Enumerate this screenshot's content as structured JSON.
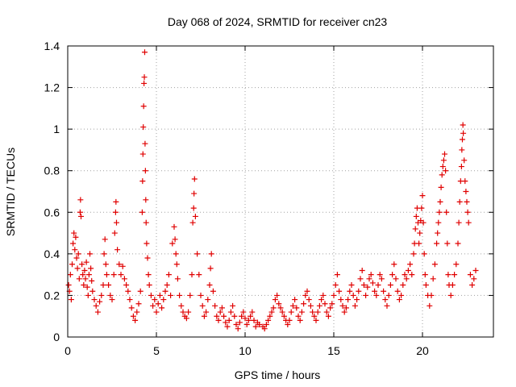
{
  "chart_data": {
    "type": "scatter",
    "title": "Day 068 of 2024, SRMTID for receiver cn23",
    "xlabel": "GPS time / hours",
    "ylabel": "SRMTID / TECUs",
    "xlim": [
      0,
      24
    ],
    "ylim": [
      0,
      1.4
    ],
    "x_ticks": [
      0,
      5,
      10,
      15,
      20
    ],
    "x_tick_labels": [
      "0",
      "5",
      "10",
      "15",
      "20"
    ],
    "y_ticks": [
      0,
      0.2,
      0.4,
      0.6,
      0.8,
      1,
      1.2,
      1.4
    ],
    "y_tick_labels": [
      "0",
      "0.2",
      "0.4",
      "0.6",
      "0.8",
      "1",
      "1.2",
      "1.4"
    ],
    "grid": true,
    "marker": "plus",
    "colors": {
      "series": "#e00000",
      "grid": "#a0a0a0",
      "axis": "#000000"
    },
    "series": [
      {
        "name": "SRMTID",
        "points": [
          [
            0.05,
            0.25
          ],
          [
            0.1,
            0.22
          ],
          [
            0.15,
            0.3
          ],
          [
            0.2,
            0.18
          ],
          [
            0.25,
            0.35
          ],
          [
            0.3,
            0.45
          ],
          [
            0.35,
            0.5
          ],
          [
            0.4,
            0.42
          ],
          [
            0.45,
            0.48
          ],
          [
            0.5,
            0.38
          ],
          [
            0.55,
            0.33
          ],
          [
            0.6,
            0.4
          ],
          [
            0.65,
            0.28
          ],
          [
            0.7,
            0.6
          ],
          [
            0.72,
            0.66
          ],
          [
            0.75,
            0.58
          ],
          [
            0.8,
            0.35
          ],
          [
            0.85,
            0.3
          ],
          [
            0.9,
            0.25
          ],
          [
            0.95,
            0.32
          ],
          [
            1.0,
            0.28
          ],
          [
            1.05,
            0.36
          ],
          [
            1.1,
            0.24
          ],
          [
            1.15,
            0.2
          ],
          [
            1.2,
            0.3
          ],
          [
            1.25,
            0.4
          ],
          [
            1.3,
            0.33
          ],
          [
            1.35,
            0.27
          ],
          [
            1.4,
            0.22
          ],
          [
            1.5,
            0.18
          ],
          [
            1.6,
            0.15
          ],
          [
            1.7,
            0.12
          ],
          [
            1.8,
            0.17
          ],
          [
            1.9,
            0.2
          ],
          [
            2.0,
            0.25
          ],
          [
            2.05,
            0.4
          ],
          [
            2.1,
            0.47
          ],
          [
            2.15,
            0.35
          ],
          [
            2.2,
            0.3
          ],
          [
            2.3,
            0.25
          ],
          [
            2.4,
            0.2
          ],
          [
            2.5,
            0.18
          ],
          [
            2.6,
            0.3
          ],
          [
            2.65,
            0.5
          ],
          [
            2.7,
            0.6
          ],
          [
            2.72,
            0.65
          ],
          [
            2.75,
            0.55
          ],
          [
            2.8,
            0.42
          ],
          [
            2.9,
            0.35
          ],
          [
            3.0,
            0.3
          ],
          [
            3.1,
            0.34
          ],
          [
            3.2,
            0.28
          ],
          [
            3.3,
            0.25
          ],
          [
            3.4,
            0.22
          ],
          [
            3.5,
            0.18
          ],
          [
            3.6,
            0.14
          ],
          [
            3.7,
            0.1
          ],
          [
            3.8,
            0.08
          ],
          [
            3.9,
            0.12
          ],
          [
            4.0,
            0.16
          ],
          [
            4.1,
            0.22
          ],
          [
            4.2,
            0.6
          ],
          [
            4.22,
            0.75
          ],
          [
            4.24,
            0.88
          ],
          [
            4.26,
            1.01
          ],
          [
            4.28,
            1.11
          ],
          [
            4.3,
            1.22
          ],
          [
            4.32,
            1.25
          ],
          [
            4.34,
            1.37
          ],
          [
            4.36,
            0.93
          ],
          [
            4.38,
            0.8
          ],
          [
            4.4,
            0.66
          ],
          [
            4.42,
            0.55
          ],
          [
            4.45,
            0.45
          ],
          [
            4.5,
            0.38
          ],
          [
            4.55,
            0.3
          ],
          [
            4.6,
            0.25
          ],
          [
            4.7,
            0.2
          ],
          [
            4.8,
            0.15
          ],
          [
            4.9,
            0.18
          ],
          [
            5.0,
            0.12
          ],
          [
            5.1,
            0.16
          ],
          [
            5.2,
            0.2
          ],
          [
            5.3,
            0.14
          ],
          [
            5.4,
            0.18
          ],
          [
            5.5,
            0.22
          ],
          [
            5.6,
            0.25
          ],
          [
            5.7,
            0.3
          ],
          [
            5.8,
            0.2
          ],
          [
            5.9,
            0.45
          ],
          [
            6.0,
            0.53
          ],
          [
            6.05,
            0.47
          ],
          [
            6.1,
            0.4
          ],
          [
            6.15,
            0.35
          ],
          [
            6.2,
            0.28
          ],
          [
            6.3,
            0.2
          ],
          [
            6.4,
            0.15
          ],
          [
            6.5,
            0.12
          ],
          [
            6.6,
            0.1
          ],
          [
            6.7,
            0.09
          ],
          [
            6.8,
            0.12
          ],
          [
            6.9,
            0.2
          ],
          [
            7.0,
            0.3
          ],
          [
            7.05,
            0.55
          ],
          [
            7.1,
            0.62
          ],
          [
            7.12,
            0.69
          ],
          [
            7.15,
            0.76
          ],
          [
            7.2,
            0.58
          ],
          [
            7.3,
            0.4
          ],
          [
            7.4,
            0.3
          ],
          [
            7.5,
            0.2
          ],
          [
            7.6,
            0.15
          ],
          [
            7.7,
            0.1
          ],
          [
            7.8,
            0.12
          ],
          [
            7.9,
            0.18
          ],
          [
            8.0,
            0.25
          ],
          [
            8.05,
            0.33
          ],
          [
            8.1,
            0.4
          ],
          [
            8.2,
            0.22
          ],
          [
            8.3,
            0.15
          ],
          [
            8.4,
            0.1
          ],
          [
            8.5,
            0.08
          ],
          [
            8.6,
            0.12
          ],
          [
            8.7,
            0.14
          ],
          [
            8.8,
            0.1
          ],
          [
            8.9,
            0.07
          ],
          [
            9.0,
            0.05
          ],
          [
            9.1,
            0.08
          ],
          [
            9.2,
            0.12
          ],
          [
            9.3,
            0.15
          ],
          [
            9.4,
            0.1
          ],
          [
            9.5,
            0.06
          ],
          [
            9.6,
            0.04
          ],
          [
            9.7,
            0.07
          ],
          [
            9.8,
            0.1
          ],
          [
            9.9,
            0.12
          ],
          [
            10.0,
            0.09
          ],
          [
            10.1,
            0.06
          ],
          [
            10.2,
            0.08
          ],
          [
            10.3,
            0.1
          ],
          [
            10.4,
            0.12
          ],
          [
            10.5,
            0.08
          ],
          [
            10.6,
            0.05
          ],
          [
            10.7,
            0.07
          ],
          [
            10.8,
            0.06
          ],
          [
            11.0,
            0.05
          ],
          [
            11.1,
            0.04
          ],
          [
            11.2,
            0.06
          ],
          [
            11.3,
            0.08
          ],
          [
            11.4,
            0.1
          ],
          [
            11.5,
            0.12
          ],
          [
            11.6,
            0.14
          ],
          [
            11.7,
            0.18
          ],
          [
            11.8,
            0.2
          ],
          [
            11.9,
            0.16
          ],
          [
            12.0,
            0.14
          ],
          [
            12.1,
            0.12
          ],
          [
            12.2,
            0.1
          ],
          [
            12.3,
            0.08
          ],
          [
            12.4,
            0.06
          ],
          [
            12.5,
            0.08
          ],
          [
            12.6,
            0.12
          ],
          [
            12.7,
            0.15
          ],
          [
            12.8,
            0.18
          ],
          [
            12.9,
            0.14
          ],
          [
            13.0,
            0.1
          ],
          [
            13.1,
            0.08
          ],
          [
            13.2,
            0.12
          ],
          [
            13.3,
            0.16
          ],
          [
            13.4,
            0.2
          ],
          [
            13.5,
            0.22
          ],
          [
            13.6,
            0.18
          ],
          [
            13.7,
            0.15
          ],
          [
            13.8,
            0.12
          ],
          [
            13.9,
            0.1
          ],
          [
            14.0,
            0.08
          ],
          [
            14.1,
            0.12
          ],
          [
            14.2,
            0.15
          ],
          [
            14.3,
            0.18
          ],
          [
            14.4,
            0.2
          ],
          [
            14.5,
            0.16
          ],
          [
            14.6,
            0.12
          ],
          [
            14.7,
            0.1
          ],
          [
            14.8,
            0.14
          ],
          [
            14.9,
            0.16
          ],
          [
            15.0,
            0.2
          ],
          [
            15.1,
            0.25
          ],
          [
            15.2,
            0.3
          ],
          [
            15.3,
            0.22
          ],
          [
            15.4,
            0.18
          ],
          [
            15.5,
            0.15
          ],
          [
            15.6,
            0.12
          ],
          [
            15.7,
            0.14
          ],
          [
            15.8,
            0.18
          ],
          [
            15.9,
            0.22
          ],
          [
            16.0,
            0.25
          ],
          [
            16.1,
            0.2
          ],
          [
            16.2,
            0.15
          ],
          [
            16.3,
            0.18
          ],
          [
            16.4,
            0.22
          ],
          [
            16.5,
            0.28
          ],
          [
            16.6,
            0.32
          ],
          [
            16.7,
            0.25
          ],
          [
            16.8,
            0.2
          ],
          [
            16.9,
            0.24
          ],
          [
            17.0,
            0.28
          ],
          [
            17.1,
            0.3
          ],
          [
            17.2,
            0.26
          ],
          [
            17.3,
            0.22
          ],
          [
            17.4,
            0.2
          ],
          [
            17.5,
            0.25
          ],
          [
            17.6,
            0.3
          ],
          [
            17.7,
            0.28
          ],
          [
            17.8,
            0.22
          ],
          [
            17.9,
            0.18
          ],
          [
            18.0,
            0.15
          ],
          [
            18.1,
            0.2
          ],
          [
            18.2,
            0.25
          ],
          [
            18.3,
            0.3
          ],
          [
            18.4,
            0.35
          ],
          [
            18.5,
            0.28
          ],
          [
            18.6,
            0.22
          ],
          [
            18.7,
            0.18
          ],
          [
            18.8,
            0.2
          ],
          [
            18.9,
            0.25
          ],
          [
            19.0,
            0.3
          ],
          [
            19.1,
            0.28
          ],
          [
            19.2,
            0.32
          ],
          [
            19.3,
            0.35
          ],
          [
            19.4,
            0.3
          ],
          [
            19.5,
            0.4
          ],
          [
            19.55,
            0.45
          ],
          [
            19.6,
            0.52
          ],
          [
            19.65,
            0.58
          ],
          [
            19.7,
            0.62
          ],
          [
            19.75,
            0.55
          ],
          [
            19.8,
            0.45
          ],
          [
            19.85,
            0.5
          ],
          [
            19.9,
            0.56
          ],
          [
            19.95,
            0.62
          ],
          [
            20.0,
            0.68
          ],
          [
            20.05,
            0.55
          ],
          [
            20.1,
            0.4
          ],
          [
            20.15,
            0.3
          ],
          [
            20.2,
            0.25
          ],
          [
            20.3,
            0.2
          ],
          [
            20.4,
            0.15
          ],
          [
            20.5,
            0.2
          ],
          [
            20.6,
            0.28
          ],
          [
            20.7,
            0.35
          ],
          [
            20.8,
            0.45
          ],
          [
            20.85,
            0.5
          ],
          [
            20.9,
            0.55
          ],
          [
            20.95,
            0.6
          ],
          [
            21.0,
            0.65
          ],
          [
            21.05,
            0.72
          ],
          [
            21.1,
            0.78
          ],
          [
            21.15,
            0.82
          ],
          [
            21.2,
            0.85
          ],
          [
            21.25,
            0.88
          ],
          [
            21.3,
            0.8
          ],
          [
            21.35,
            0.6
          ],
          [
            21.4,
            0.45
          ],
          [
            21.45,
            0.3
          ],
          [
            21.5,
            0.25
          ],
          [
            21.6,
            0.2
          ],
          [
            21.7,
            0.25
          ],
          [
            21.8,
            0.3
          ],
          [
            21.9,
            0.35
          ],
          [
            22.0,
            0.45
          ],
          [
            22.05,
            0.55
          ],
          [
            22.1,
            0.65
          ],
          [
            22.15,
            0.75
          ],
          [
            22.2,
            0.82
          ],
          [
            22.22,
            0.9
          ],
          [
            22.25,
            0.95
          ],
          [
            22.28,
            1.02
          ],
          [
            22.3,
            0.98
          ],
          [
            22.35,
            0.85
          ],
          [
            22.4,
            0.75
          ],
          [
            22.45,
            0.7
          ],
          [
            22.5,
            0.65
          ],
          [
            22.55,
            0.6
          ],
          [
            22.6,
            0.55
          ],
          [
            22.7,
            0.3
          ],
          [
            22.8,
            0.25
          ],
          [
            22.9,
            0.28
          ],
          [
            23.0,
            0.32
          ]
        ]
      }
    ]
  }
}
